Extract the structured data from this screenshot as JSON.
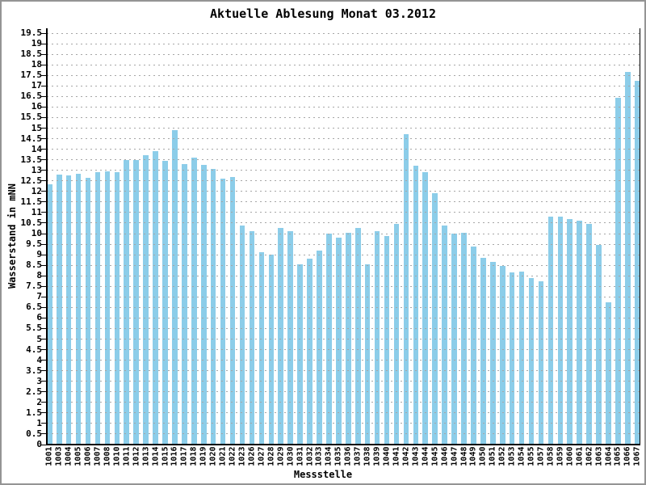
{
  "window": {
    "background": "#ffffff",
    "border_color": "#949494"
  },
  "chart_data": {
    "type": "bar",
    "title": "Aktuelle Ablesung Monat 03.2012",
    "xlabel": "Messstelle",
    "ylabel": "Wasserstand in mNN",
    "ylim": [
      0,
      19.5
    ],
    "ytick_step": 0.5,
    "grid": "horizontal-dashed",
    "legend": "none",
    "bar_color": "#8CCDE9",
    "gridline_color": "#a6a6a6",
    "axis_color": "#000000",
    "categories": [
      "1001",
      "1003",
      "1004",
      "1005",
      "1006",
      "1007",
      "1008",
      "1010",
      "1011",
      "1012",
      "1013",
      "1014",
      "1015",
      "1016",
      "1017",
      "1018",
      "1019",
      "1020",
      "1021",
      "1022",
      "1023",
      "1026",
      "1027",
      "1028",
      "1029",
      "1030",
      "1031",
      "1032",
      "1033",
      "1034",
      "1035",
      "1036",
      "1037",
      "1038",
      "1039",
      "1040",
      "1041",
      "1042",
      "1043",
      "1044",
      "1045",
      "1046",
      "1047",
      "1048",
      "1049",
      "1050",
      "1051",
      "1052",
      "1053",
      "1054",
      "1055",
      "1057",
      "1058",
      "1059",
      "1060",
      "1061",
      "1062",
      "1063",
      "1064",
      "1065",
      "1066",
      "1067"
    ],
    "values": [
      12.35,
      12.8,
      12.75,
      12.85,
      12.65,
      12.9,
      12.95,
      12.9,
      13.5,
      13.5,
      13.7,
      13.9,
      13.45,
      14.9,
      13.3,
      13.6,
      13.25,
      13.05,
      12.6,
      12.7,
      10.4,
      10.1,
      9.1,
      9.0,
      10.25,
      10.1,
      8.55,
      8.8,
      9.2,
      10.0,
      9.8,
      10.05,
      10.25,
      8.55,
      10.1,
      9.9,
      10.45,
      14.7,
      13.2,
      12.9,
      11.9,
      10.4,
      10.0,
      10.05,
      9.4,
      8.85,
      8.65,
      8.45,
      8.15,
      8.2,
      7.9,
      7.75,
      10.8,
      10.8,
      10.7,
      10.6,
      10.45,
      9.45,
      6.75,
      16.45,
      17.65,
      17.25
    ],
    "ytick_labels": [
      "0",
      "0.5",
      "1",
      "1.5",
      "2",
      "2.5",
      "3",
      "3.5",
      "4",
      "4.5",
      "5",
      "5.5",
      "6",
      "6.5",
      "7",
      "7.5",
      "8",
      "8.5",
      "9",
      "9.5",
      "10",
      "10.5",
      "11",
      "11.5",
      "12",
      "12.5",
      "13",
      "13.5",
      "14",
      "14.5",
      "15",
      "15.5",
      "16",
      "16.5",
      "17",
      "17.5",
      "18",
      "18.5",
      "19",
      "19.5"
    ]
  }
}
